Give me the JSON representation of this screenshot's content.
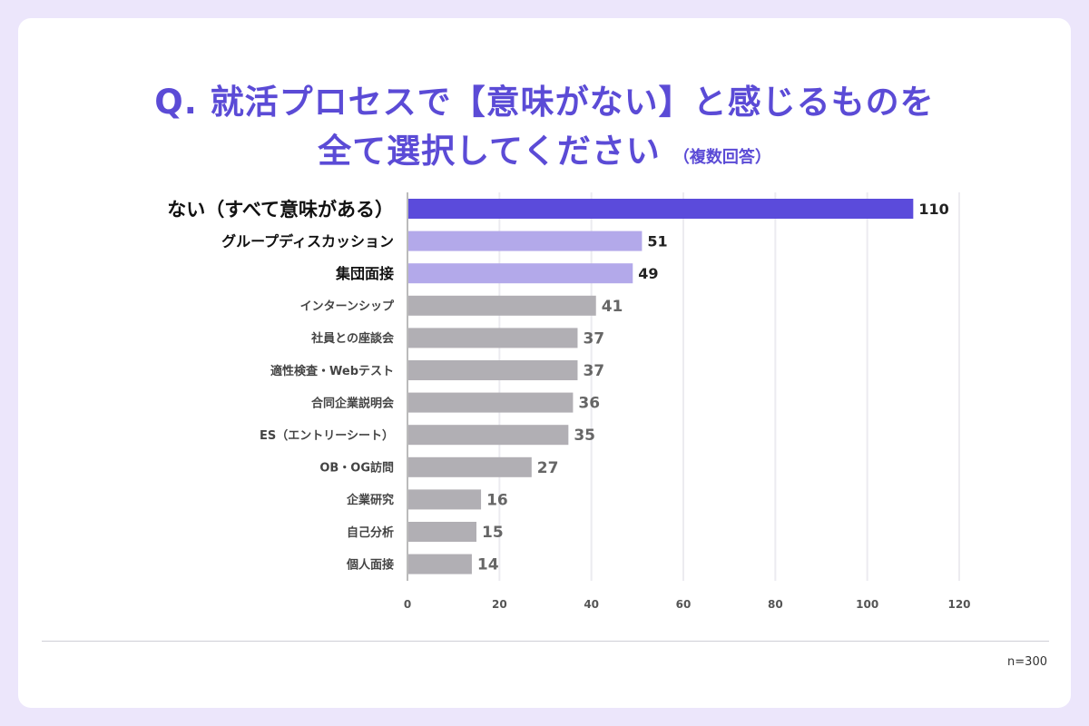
{
  "title_line1": "Q. 就活プロセスで【意味がない】と感じるものを",
  "title_line2": "全て選択してください",
  "title_note": "（複数回答）",
  "sample_size": "n=300",
  "colors": {
    "highlight": "#5b4bdb",
    "secondary": "#b3a9ea",
    "other": "#b1afb4",
    "background": "#ece6fb"
  },
  "chart_data": {
    "type": "bar",
    "orientation": "horizontal",
    "categories": [
      "ない（すべて意味がある）",
      "グループディスカッション",
      "集団面接",
      "インターンシップ",
      "社員との座談会",
      "適性検査・Webテスト",
      "合同企業説明会",
      "ES（エントリーシート）",
      "OB・OG訪問",
      "企業研究",
      "自己分析",
      "個人面接"
    ],
    "values": [
      110,
      51,
      49,
      41,
      37,
      37,
      36,
      35,
      27,
      16,
      15,
      14
    ],
    "xlim": [
      0,
      120
    ],
    "xticks": [
      "0",
      "20",
      "40",
      "60",
      "80",
      "100",
      "120"
    ],
    "grid": true,
    "data_labels": true
  }
}
